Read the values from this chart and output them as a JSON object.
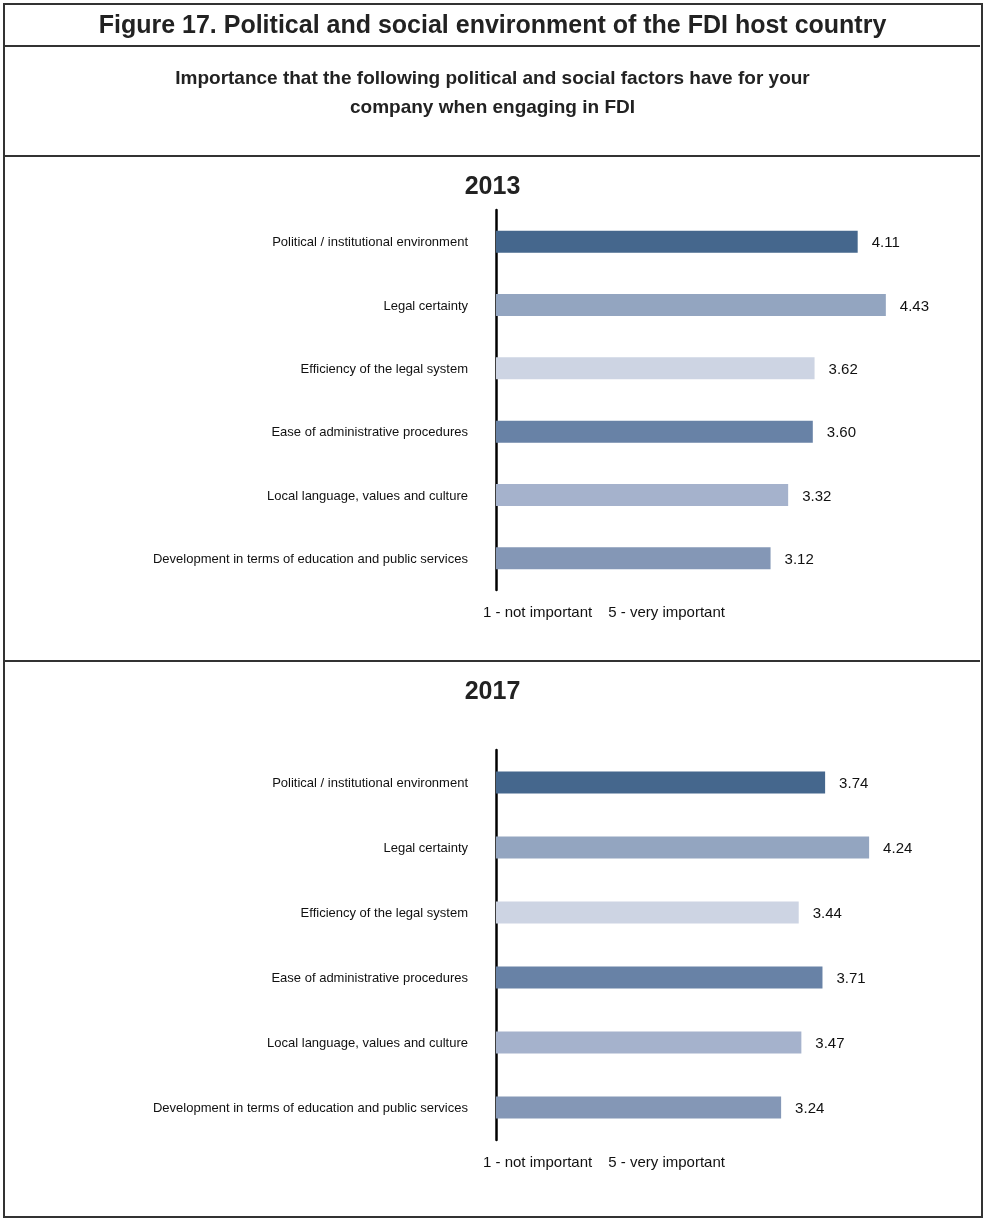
{
  "chart_data": [
    {
      "type": "other",
      "title": "Figure 17. Political and social environment of the FDI host country",
      "subtitle": "Importance that the following political and social factors have for your company when engaging in FDI"
    },
    {
      "type": "bar",
      "orientation": "horizontal",
      "title": "2013",
      "categories": [
        "Political / institutional environment",
        "Legal certainty",
        "Efficiency of the legal system",
        "Ease of administrative procedures",
        "Local language, values and culture",
        "Development in terms of education and public services"
      ],
      "values": [
        4.11,
        4.43,
        3.62,
        3.6,
        3.32,
        3.12
      ],
      "value_labels": [
        "4.11",
        "4.43",
        "3.62",
        "3.60",
        "3.32",
        "3.12"
      ],
      "colors": [
        "#45678d",
        "#93a5c0",
        "#cdd4e3",
        "#6882a6",
        "#a5b2cc",
        "#8497b6"
      ],
      "tick_labels": "y",
      "annotations": [
        "1 - not important",
        "5 - very important"
      ]
    },
    {
      "type": "bar",
      "orientation": "horizontal",
      "title": "2017",
      "categories": [
        "Political / institutional environment",
        "Legal certainty",
        "Efficiency of the legal system",
        "Ease of administrative procedures",
        "Local language, values and culture",
        "Development in terms of education and public services"
      ],
      "values": [
        3.74,
        4.24,
        3.44,
        3.71,
        3.47,
        3.24
      ],
      "value_labels": [
        "3.74",
        "4.24",
        "3.44",
        "3.71",
        "3.47",
        "3.24"
      ],
      "colors": [
        "#45678d",
        "#93a5c0",
        "#cdd4e3",
        "#6882a6",
        "#a5b2cc",
        "#8497b6"
      ],
      "tick_labels": "y",
      "annotations": [
        "1 - not important",
        "5 - very important"
      ]
    }
  ]
}
